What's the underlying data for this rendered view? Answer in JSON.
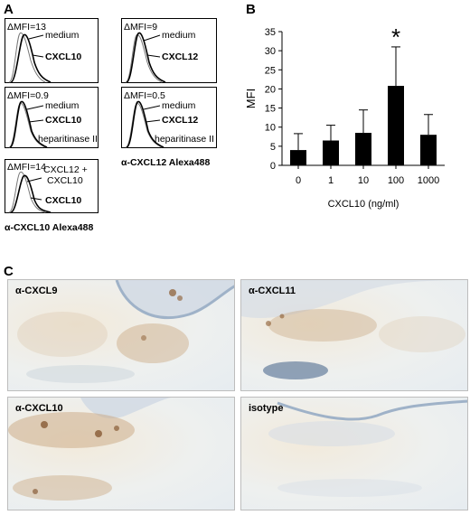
{
  "panels": {
    "a": "A",
    "b": "B",
    "c": "C"
  },
  "panel_a": {
    "histograms": [
      {
        "dmfi": "ΔMFI=13",
        "lines": [
          "medium",
          "CXCL10"
        ],
        "bold": [
          false,
          true
        ],
        "note": ""
      },
      {
        "dmfi": "ΔMFI=9",
        "lines": [
          "medium",
          "CXCL12"
        ],
        "bold": [
          false,
          true
        ],
        "note": ""
      },
      {
        "dmfi": "ΔMFI=0.9",
        "lines": [
          "medium",
          "CXCL10"
        ],
        "bold": [
          false,
          true
        ],
        "note": "heparitinase II"
      },
      {
        "dmfi": "ΔMFI=0.5",
        "lines": [
          "medium",
          "CXCL12"
        ],
        "bold": [
          false,
          true
        ],
        "note": "heparitinase II"
      },
      {
        "dmfi": "ΔMFI=14",
        "lines": [
          "CXCL12 +",
          "CXCL10",
          "CXCL10"
        ],
        "bold": [
          false,
          false,
          true
        ],
        "note": ""
      }
    ],
    "caption_cxcl12": "α-CXCL12 Alexa488",
    "caption_cxcl10": "α-CXCL10 Alexa488"
  },
  "chart_data": {
    "type": "bar",
    "categories": [
      "0",
      "1",
      "10",
      "100",
      "1000"
    ],
    "values": [
      4,
      6.5,
      8.5,
      20.8,
      8
    ],
    "errors": [
      4.3,
      4,
      6,
      10.2,
      5.3
    ],
    "ylabel": "MFI",
    "xlabel": "CXCL10 (ng/ml)",
    "ylim": [
      0,
      35
    ],
    "yticks": [
      0,
      5,
      10,
      15,
      20,
      25,
      30,
      35
    ],
    "annotation": {
      "category": "100",
      "text": "*"
    },
    "bar_color": "#000000"
  },
  "panel_c": {
    "images": [
      {
        "label": "α-CXCL9"
      },
      {
        "label": "α-CXCL11"
      },
      {
        "label": "α-CXCL10"
      },
      {
        "label": "isotype"
      }
    ]
  }
}
